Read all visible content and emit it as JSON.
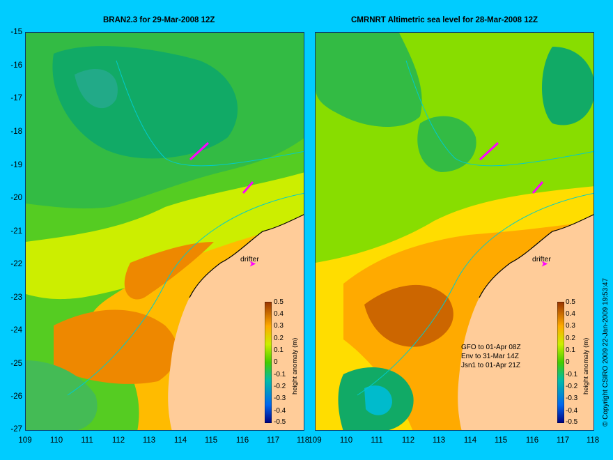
{
  "map": {
    "left_title": "BRAN2.3 for 29-Mar-2008 12Z",
    "right_title": "CMRNRT Altimetric sea level  for 28-Mar-2008 12Z",
    "lat_ticks": [
      "-15",
      "-16",
      "-17",
      "-18",
      "-19",
      "-20",
      "-21",
      "-22",
      "-23",
      "-24",
      "-25",
      "-26",
      "-27"
    ],
    "lon_ticks": [
      "109",
      "110",
      "111",
      "112",
      "113",
      "114",
      "115",
      "116",
      "117",
      "118"
    ],
    "colorbar": {
      "label": "height anomaly (m)",
      "ticks": [
        "0.5",
        "0.4",
        "0.3",
        "0.2",
        "0.1",
        "0",
        "-0.1",
        "-0.2",
        "-0.3",
        "-0.4",
        "-0.5"
      ],
      "colors": [
        "#000080",
        "#0044cc",
        "#0088ff",
        "#00bbcc",
        "#00cc88",
        "#44cc00",
        "#88dd00",
        "#ccee00",
        "#ffdd00",
        "#ffaa00",
        "#ee8800",
        "#cc6600",
        "#993300"
      ]
    },
    "drifter_label": "drifter",
    "satellites": [
      "GFO to 01-Apr 08Z",
      "Env to 31-Mar 14Z",
      "Jsn1 to 01-Apr 21Z"
    ],
    "copyright": "© Copyright CSIRO 2009   22-Jan-2009 19:53:47",
    "colors": {
      "background": "#00ccff",
      "land": "#ffcc99",
      "coast": "#00cccc",
      "drifter": "#ff00ff"
    }
  }
}
